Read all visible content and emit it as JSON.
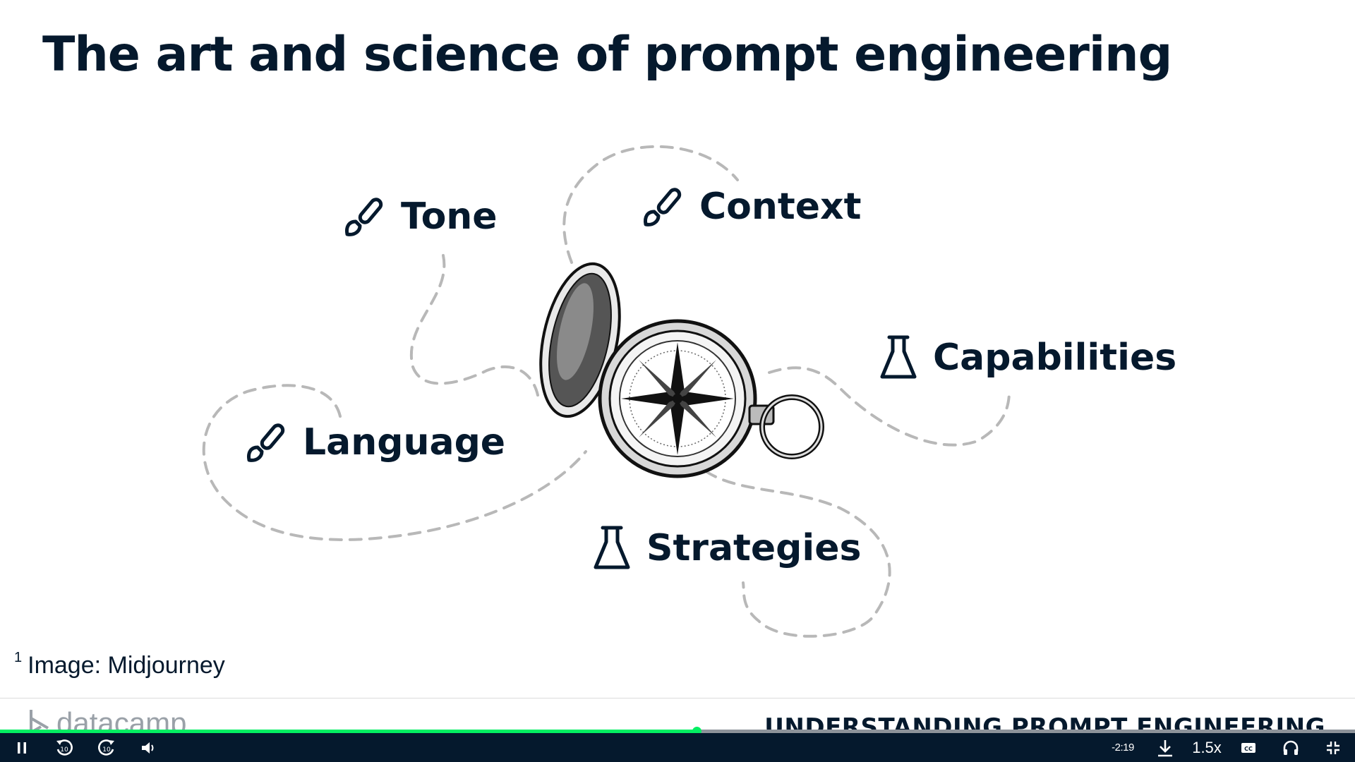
{
  "slide": {
    "title": "The art and science of prompt engineering",
    "topics": {
      "tone": "Tone",
      "context": "Context",
      "capabilities": "Capabilities",
      "language": "Language",
      "strategies": "Strategies"
    },
    "footnote_number": "1",
    "footnote_text": "Image: Midjourney",
    "brand": "datacamp",
    "course_title": "UNDERSTANDING PROMPT ENGINEERING"
  },
  "player": {
    "progress_fraction": 0.514,
    "time_remaining": "-2:19",
    "playback_speed": "1.5x",
    "icons": [
      "pause-icon",
      "rewind-10-icon",
      "forward-10-icon",
      "volume-icon",
      "download-icon",
      "captions-icon",
      "headphones-icon",
      "exit-fullscreen-icon"
    ]
  },
  "colors": {
    "navy": "#05192d",
    "green": "#03ef62",
    "dash": "#b8b8b8"
  }
}
